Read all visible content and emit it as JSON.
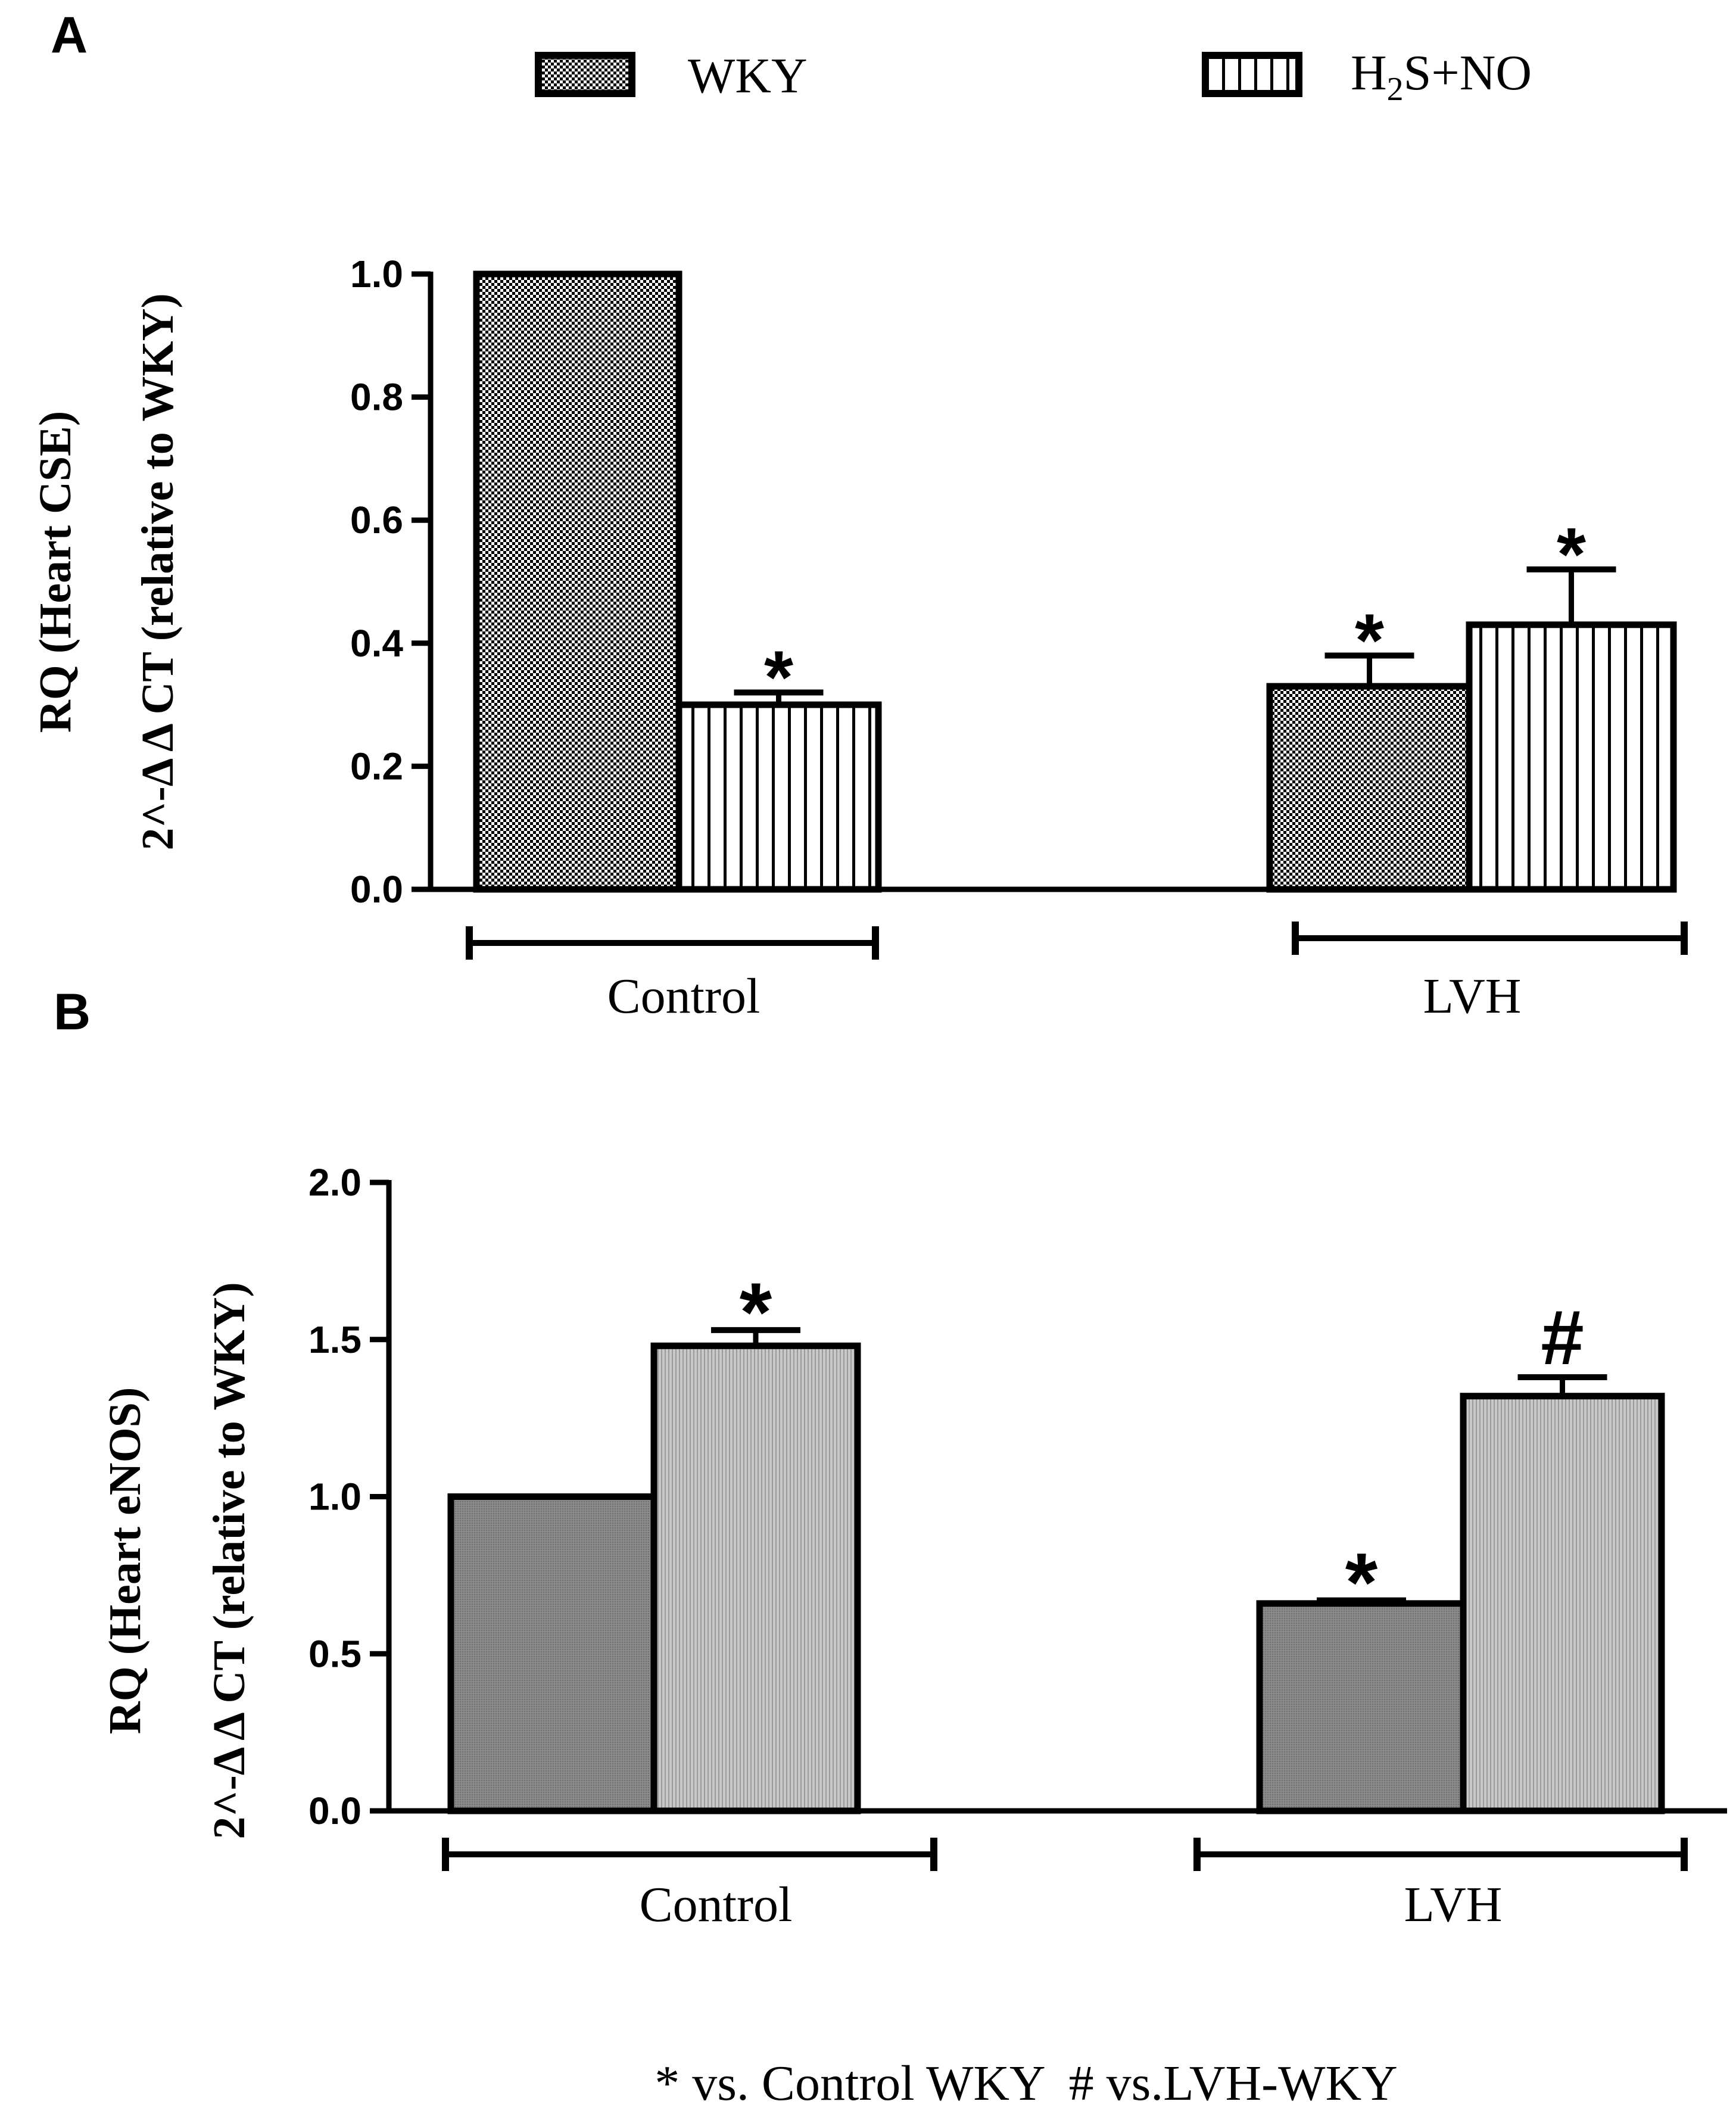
{
  "legend": {
    "wky": "WKY",
    "h2sno_prefix": "H",
    "h2sno_sub": "2",
    "h2sno_suffix": "S+NO"
  },
  "colors": {
    "ink": "#000000",
    "panel_b_wky": "#808080",
    "panel_b_h2sno": "#b8b8b8",
    "background": "#ffffff"
  },
  "footnote": "* vs. Control WKY  # vs.LVH-WKY",
  "chart_data": [
    {
      "panel_label": "A",
      "type": "bar",
      "ylabel_line1": "RQ (Heart CSE)",
      "ylabel_line2": "2^-Δ Δ CT (relative to WKY)",
      "ylim": [
        0,
        1.0
      ],
      "yticks": [
        "0.0",
        "0.2",
        "0.4",
        "0.6",
        "0.8",
        "1.0"
      ],
      "ytick_values": [
        0.0,
        0.2,
        0.4,
        0.6,
        0.8,
        1.0
      ],
      "categories": [
        "Control",
        "LVH"
      ],
      "series": [
        {
          "name": "WKY",
          "values": [
            1.0,
            0.33
          ],
          "errors": [
            0.0,
            0.05
          ],
          "annotations": [
            "",
            "*"
          ]
        },
        {
          "name": "H2S+NO",
          "values": [
            0.3,
            0.43
          ],
          "errors": [
            0.02,
            0.09
          ],
          "annotations": [
            "*",
            "*"
          ]
        }
      ]
    },
    {
      "panel_label": "B",
      "type": "bar",
      "ylabel_line1": "RQ (Heart eNOS)",
      "ylabel_line2": "2^-Δ Δ CT (relative to WKY)",
      "ylim": [
        0,
        2.0
      ],
      "yticks": [
        "0.0",
        "0.5",
        "1.0",
        "1.5",
        "2.0"
      ],
      "ytick_values": [
        0.0,
        0.5,
        1.0,
        1.5,
        2.0
      ],
      "categories": [
        "Control",
        "LVH"
      ],
      "series": [
        {
          "name": "WKY",
          "values": [
            1.0,
            0.66
          ],
          "errors": [
            0.0,
            0.01
          ],
          "annotations": [
            "",
            "*"
          ]
        },
        {
          "name": "H2S+NO",
          "values": [
            1.48,
            1.32
          ],
          "errors": [
            0.05,
            0.06
          ],
          "annotations": [
            "*",
            "#"
          ]
        }
      ]
    }
  ]
}
